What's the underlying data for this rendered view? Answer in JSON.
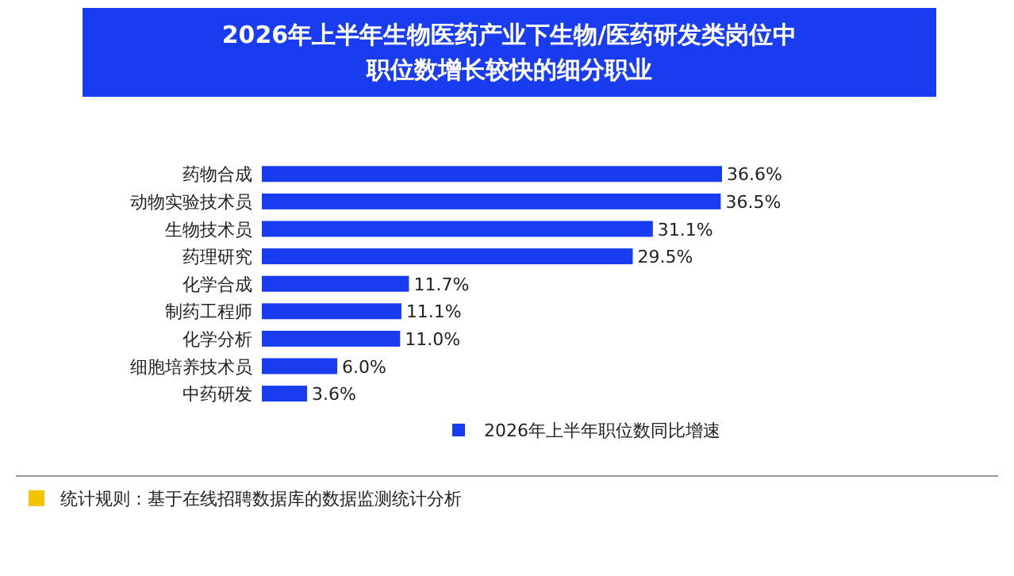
{
  "chart_data": {
    "type": "bar",
    "orientation": "horizontal",
    "title": "2026年上半年生物医药产业下生物/医药研发类岗位中职位数增长较快的细分职业",
    "categories": [
      "药物合成",
      "动物实验技术员",
      "生物技术员",
      "药理研究",
      "化学合成",
      "制药工程师",
      "化学分析",
      "细胞培养技术员",
      "中药研发"
    ],
    "series": [
      {
        "name": "2026年上半年职位数同比增速",
        "color": "#1a3cf0",
        "values": [
          36.6,
          36.5,
          31.1,
          29.5,
          11.7,
          11.1,
          11.0,
          6.0,
          3.6
        ],
        "value_labels": [
          "36.6%",
          "36.5%",
          "31.1%",
          "29.5%",
          "11.7%",
          "11.1%",
          "11.0%",
          "6.0%",
          "3.6%"
        ]
      }
    ],
    "legend": "bottom right",
    "tick_labels": "y",
    "annotations": [
      "统计规则：基于在线招聘数据库的数据监测统计分析"
    ]
  }
}
